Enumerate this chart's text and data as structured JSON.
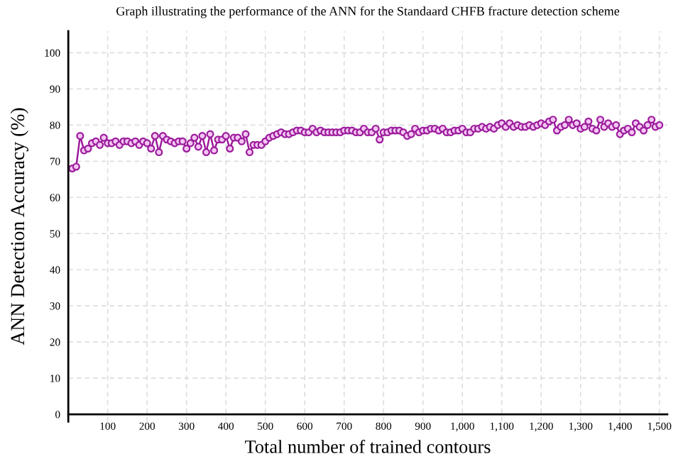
{
  "chart_data": {
    "type": "line",
    "title": "Graph illustrating the performance of the ANN for the Standaard CHFB fracture detection scheme",
    "xlabel": "Total number of trained contours",
    "ylabel": "ANN Detection Accuracy (%)",
    "x": [
      10,
      20,
      30,
      40,
      50,
      60,
      70,
      80,
      90,
      100,
      110,
      120,
      130,
      140,
      150,
      160,
      170,
      180,
      190,
      200,
      210,
      220,
      230,
      240,
      250,
      260,
      270,
      280,
      290,
      300,
      310,
      320,
      330,
      340,
      350,
      360,
      370,
      380,
      390,
      400,
      410,
      420,
      430,
      440,
      450,
      460,
      470,
      480,
      490,
      500,
      510,
      520,
      530,
      540,
      550,
      560,
      570,
      580,
      590,
      600,
      610,
      620,
      630,
      640,
      650,
      660,
      670,
      680,
      690,
      700,
      710,
      720,
      730,
      740,
      750,
      760,
      770,
      780,
      790,
      800,
      810,
      820,
      830,
      840,
      850,
      860,
      870,
      880,
      890,
      900,
      910,
      920,
      930,
      940,
      950,
      960,
      970,
      980,
      990,
      1000,
      1010,
      1020,
      1030,
      1040,
      1050,
      1060,
      1070,
      1080,
      1090,
      1100,
      1110,
      1120,
      1130,
      1140,
      1150,
      1160,
      1170,
      1180,
      1190,
      1200,
      1210,
      1220,
      1230,
      1240,
      1250,
      1260,
      1270,
      1280,
      1290,
      1300,
      1310,
      1320,
      1330,
      1340,
      1350,
      1360,
      1370,
      1380,
      1390,
      1400,
      1410,
      1420,
      1430,
      1440,
      1450,
      1460,
      1470,
      1480,
      1490,
      1500
    ],
    "series": [
      {
        "color": "#9c1c9c",
        "values": [
          68,
          68.5,
          77,
          73,
          73.5,
          75,
          75.5,
          74.5,
          76.5,
          75,
          75,
          75.5,
          74.5,
          75.5,
          75.5,
          75,
          75.5,
          74.5,
          75.5,
          75,
          73.5,
          77,
          72.5,
          77,
          76,
          75.5,
          75,
          75.5,
          75.5,
          73.5,
          75,
          76.5,
          74,
          77,
          72.5,
          77.5,
          73,
          76,
          76,
          77,
          73.5,
          76.5,
          76.5,
          75.5,
          77.5,
          72.5,
          74.5,
          74.5,
          74.5,
          75.5,
          76.5,
          77,
          77.5,
          78,
          77.5,
          77.5,
          78,
          78.5,
          78.5,
          78,
          78,
          79,
          78,
          78.5,
          78,
          78,
          78,
          78,
          78,
          78.5,
          78.5,
          78.5,
          78,
          78,
          79,
          78,
          78,
          79,
          76,
          78,
          78,
          78.5,
          78.5,
          78.5,
          78,
          77,
          77.5,
          79,
          78,
          78.5,
          78.5,
          79,
          79,
          78.5,
          79,
          78,
          78,
          78.5,
          78.5,
          79,
          78,
          78,
          79,
          79,
          79.5,
          79,
          79.5,
          79,
          80,
          80.5,
          79.5,
          80.5,
          79.5,
          80,
          79.5,
          79.5,
          80,
          79.5,
          80,
          80.5,
          80,
          81,
          81.5,
          78.5,
          79.5,
          80,
          81.5,
          80,
          80.5,
          79,
          79.5,
          81,
          79,
          78.5,
          81.5,
          79.5,
          80.5,
          79.5,
          80,
          77.5,
          78.5,
          79,
          78,
          80.5,
          79.5,
          78.5,
          80,
          81.5,
          79.5,
          80
        ]
      }
    ],
    "xlim": [
      0,
      1520
    ],
    "ylim": [
      -2,
      106
    ],
    "xticks": [
      100,
      200,
      300,
      400,
      500,
      600,
      700,
      800,
      900,
      {
        "value": 1000,
        "label": "1,000"
      },
      {
        "value": 1100,
        "label": "1,100"
      },
      {
        "value": 1200,
        "label": "1,200"
      },
      {
        "value": 1300,
        "label": "1,300"
      },
      {
        "value": 1400,
        "label": "1,400"
      },
      {
        "value": 1500,
        "label": "1,500"
      }
    ],
    "yticks": [
      0,
      10,
      20,
      30,
      40,
      50,
      60,
      70,
      80,
      90,
      100
    ],
    "grid": true,
    "marker": "circle",
    "line_style": "solid"
  }
}
